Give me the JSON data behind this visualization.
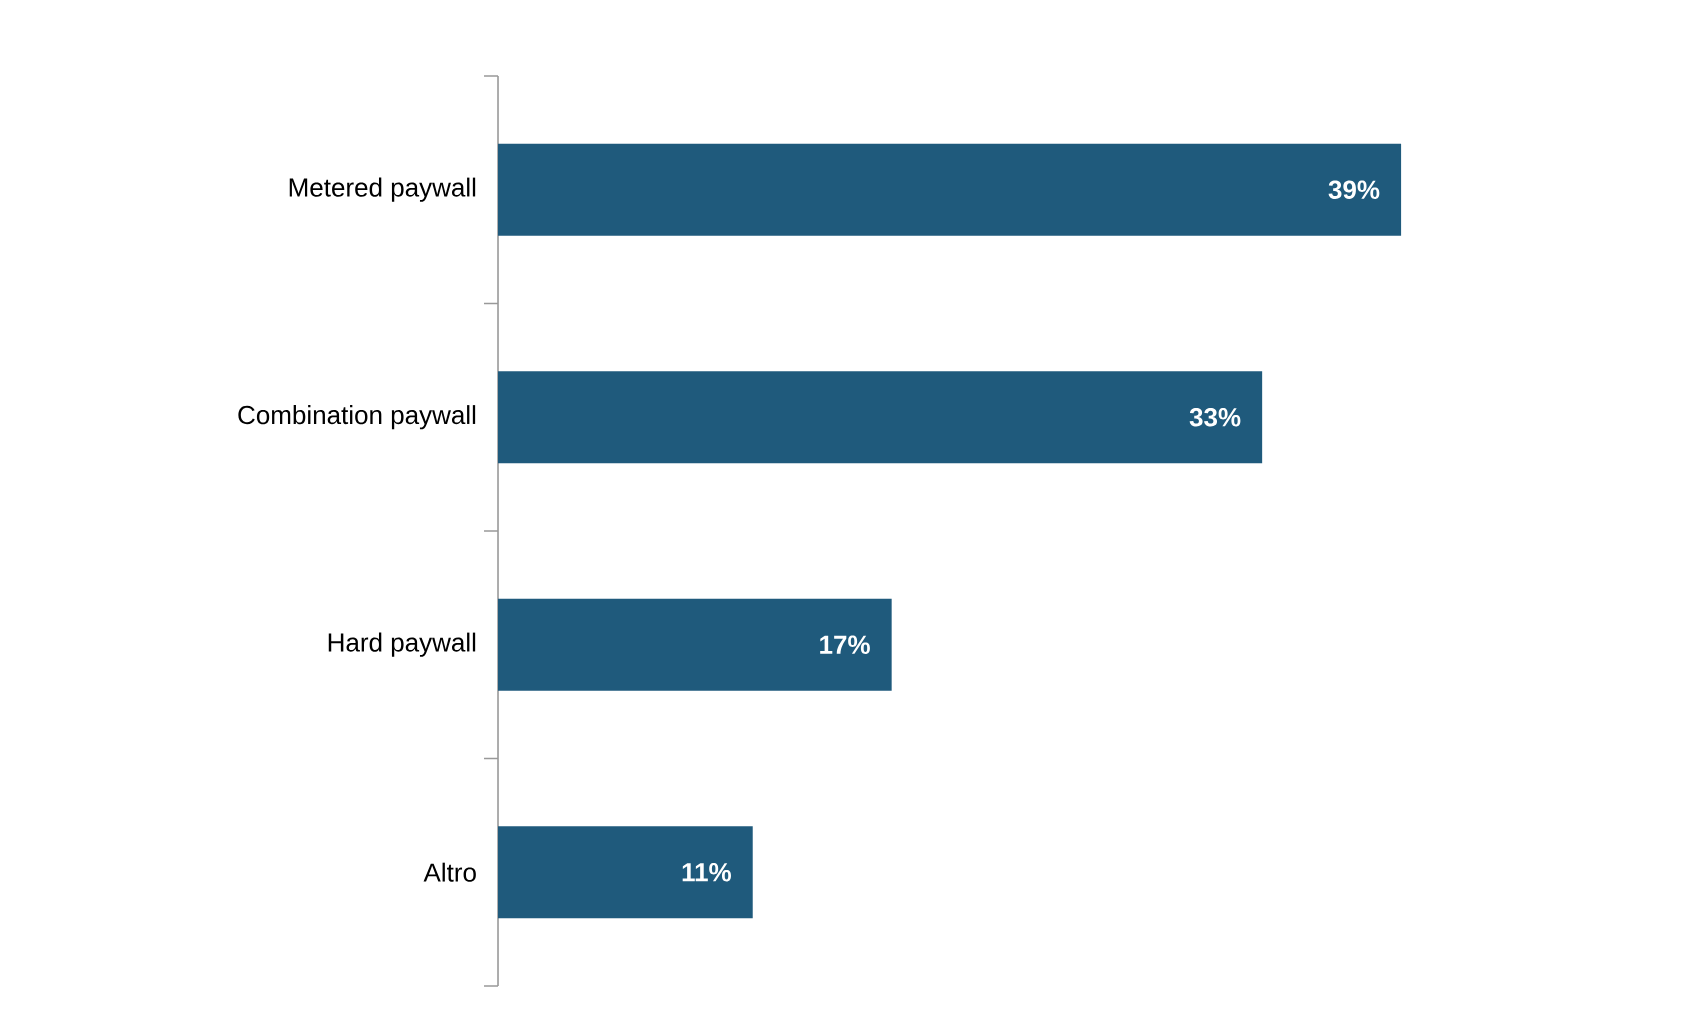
{
  "chart_data": {
    "type": "bar",
    "orientation": "horizontal",
    "categories": [
      "Metered paywall",
      "Combination paywall",
      "Hard paywall",
      "Altro"
    ],
    "values": [
      39,
      33,
      17,
      11
    ],
    "value_labels": [
      "39%",
      "33%",
      "17%",
      "11%"
    ],
    "color": "#1f5a7c"
  }
}
